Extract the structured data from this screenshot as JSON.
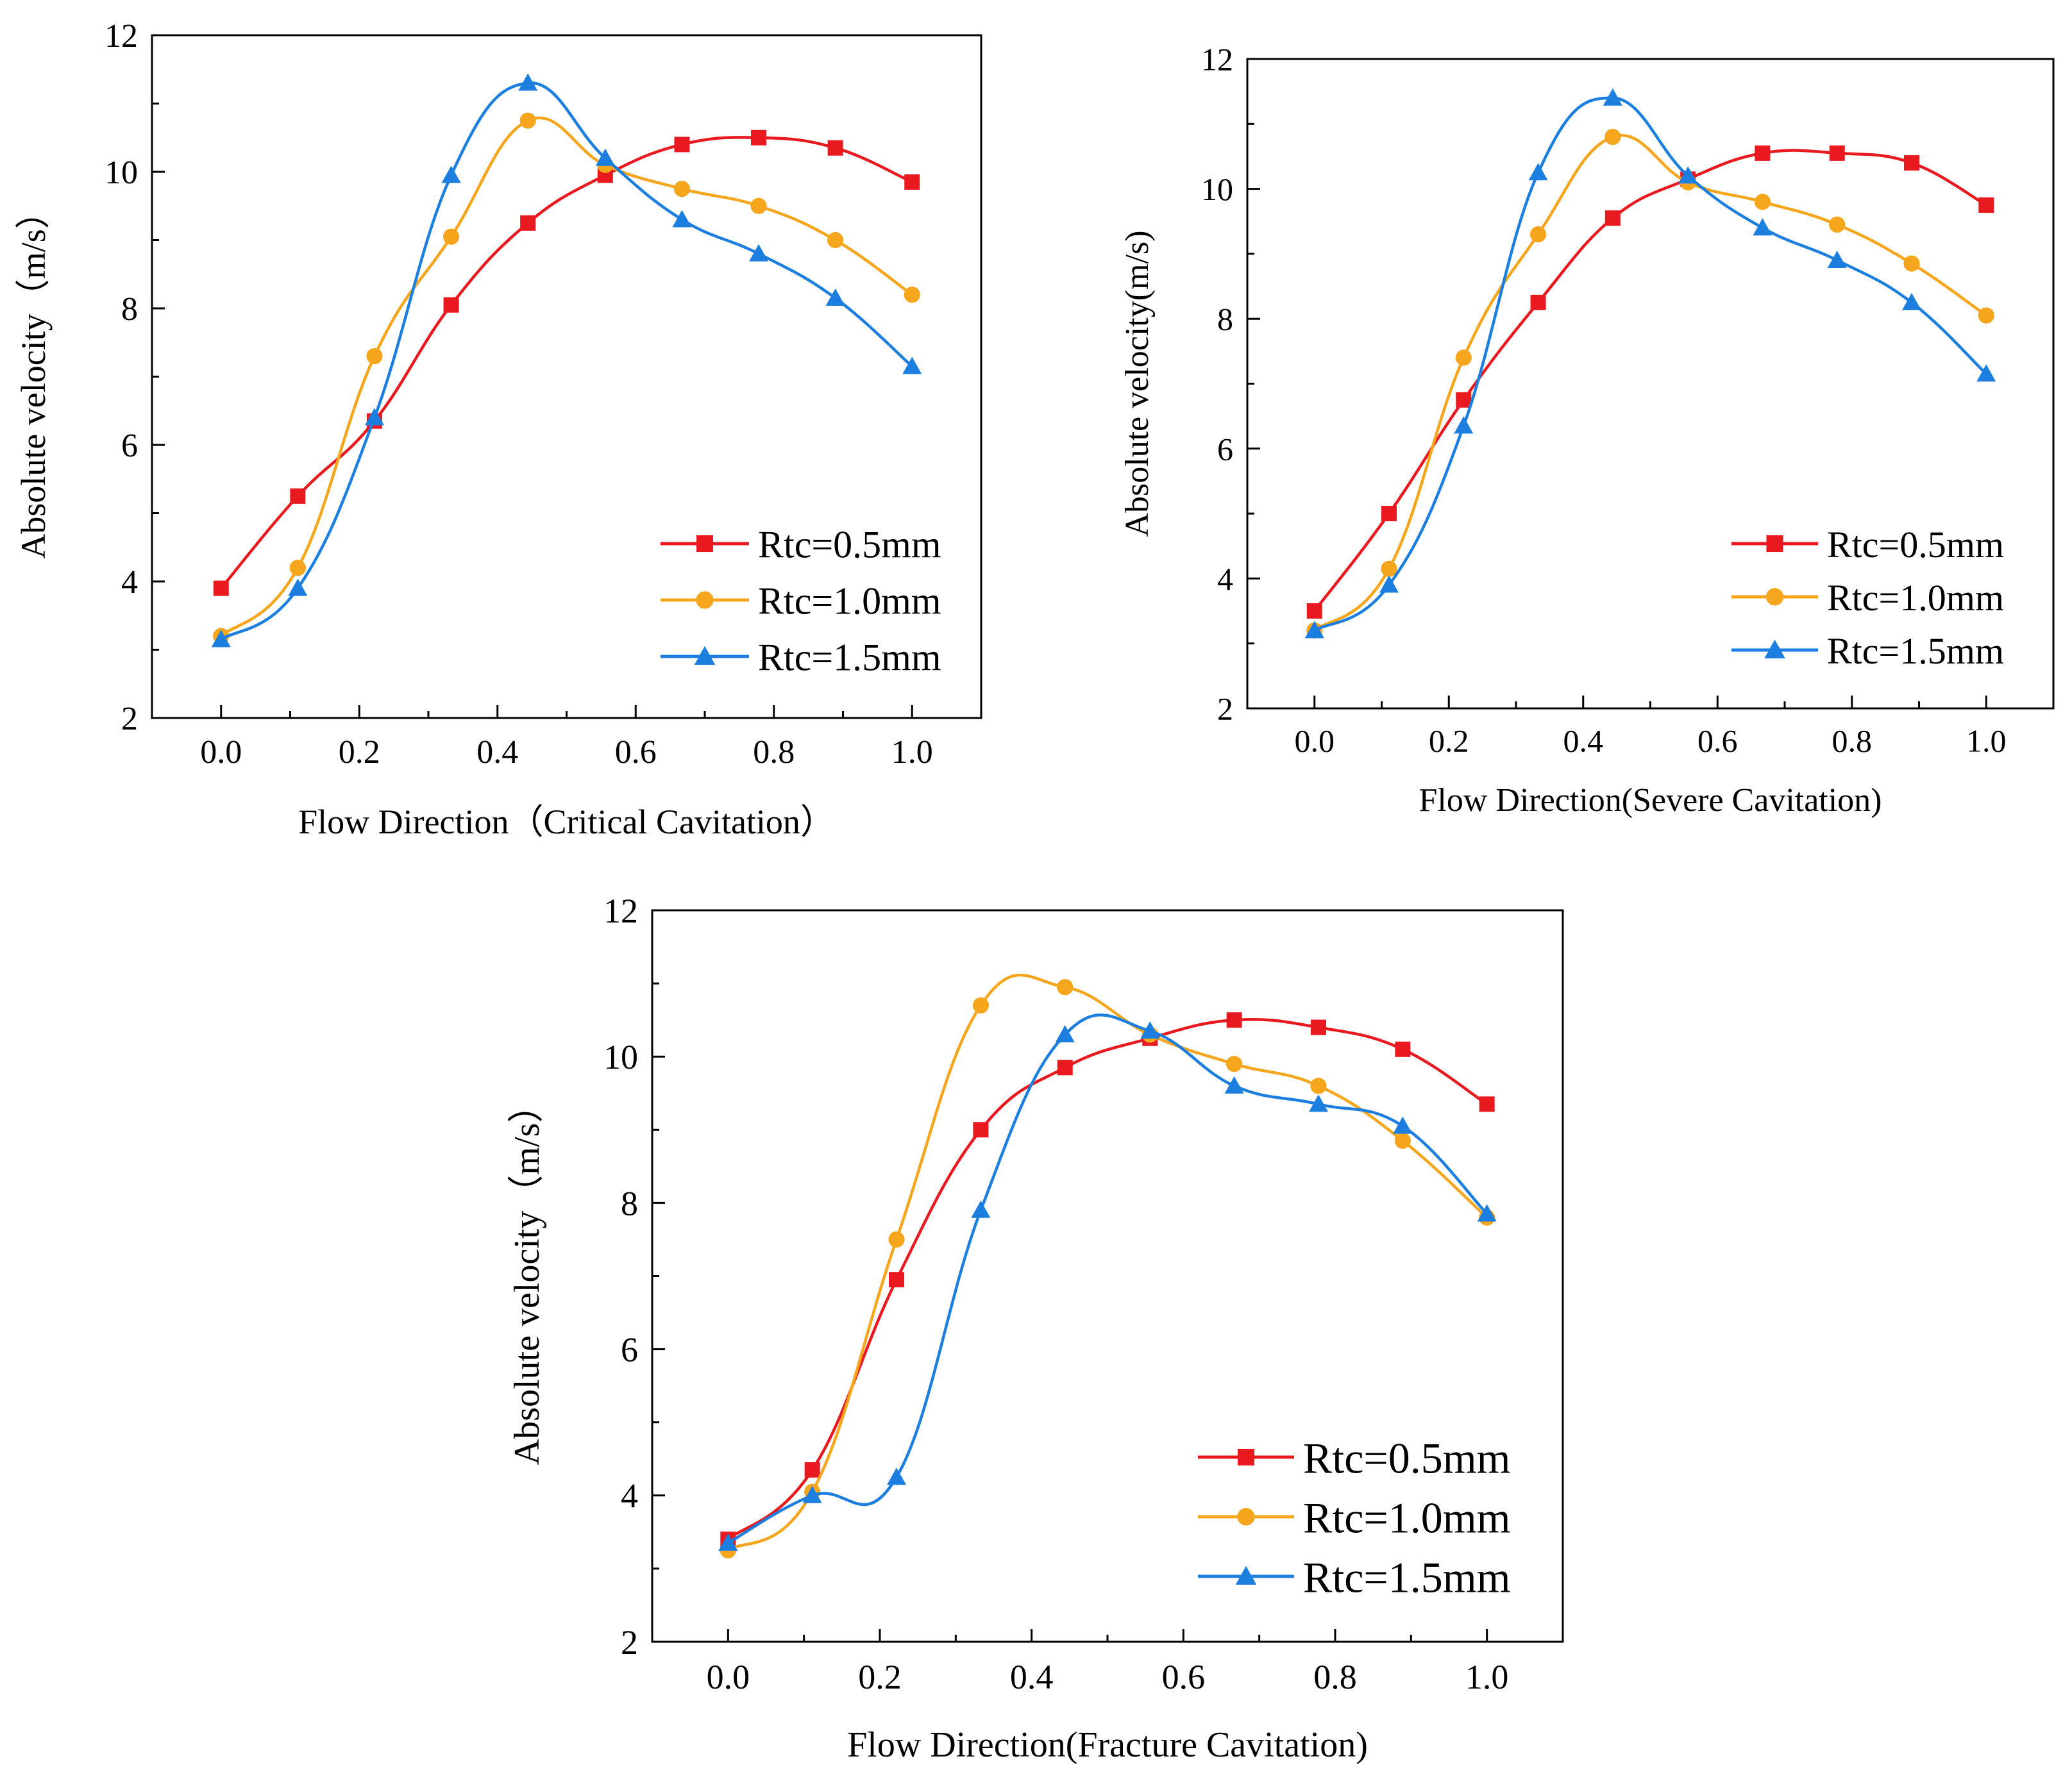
{
  "chart_data": [
    {
      "type": "line",
      "title": "",
      "xlabel": "Flow Direction（Critical Cavitation）",
      "ylabel": "Absolute velocity（m/s）",
      "xlim": [
        -0.1,
        1.1
      ],
      "ylim": [
        2,
        12
      ],
      "xticks": [
        "0.0",
        "0.2",
        "0.4",
        "0.6",
        "0.8",
        "1.0"
      ],
      "yticks": [
        "2",
        "4",
        "6",
        "8",
        "10",
        "12"
      ],
      "legend_position": "bottom-right",
      "x": [
        0,
        0.111,
        0.222,
        0.333,
        0.444,
        0.556,
        0.667,
        0.778,
        0.889,
        1.0
      ],
      "series": [
        {
          "name": "Rtc=0.5mm",
          "color": "#e8191f",
          "marker": "square",
          "values": [
            3.9,
            5.25,
            6.35,
            8.05,
            9.25,
            9.95,
            10.4,
            10.5,
            10.35,
            9.85
          ]
        },
        {
          "name": "Rtc=1.0mm",
          "color": "#f5a61c",
          "marker": "circle",
          "values": [
            3.2,
            4.2,
            7.3,
            9.05,
            10.75,
            10.1,
            9.75,
            9.5,
            9.0,
            8.2
          ]
        },
        {
          "name": "Rtc=1.5mm",
          "color": "#1c7fe0",
          "marker": "triangle",
          "values": [
            3.15,
            3.9,
            6.4,
            9.95,
            11.3,
            10.2,
            9.3,
            8.8,
            8.15,
            7.15
          ]
        }
      ]
    },
    {
      "type": "line",
      "title": "",
      "xlabel": "Flow Direction(Severe Cavitation)",
      "ylabel": "Absolute velocity(m/s)",
      "xlim": [
        -0.1,
        1.1
      ],
      "ylim": [
        2,
        12
      ],
      "xticks": [
        "0.0",
        "0.2",
        "0.4",
        "0.6",
        "0.8",
        "1.0"
      ],
      "yticks": [
        "2",
        "4",
        "6",
        "8",
        "10",
        "12"
      ],
      "legend_position": "bottom-right",
      "x": [
        0,
        0.111,
        0.222,
        0.333,
        0.444,
        0.556,
        0.667,
        0.778,
        0.889,
        1.0
      ],
      "series": [
        {
          "name": "Rtc=0.5mm",
          "color": "#e8191f",
          "marker": "square",
          "values": [
            3.5,
            5.0,
            6.75,
            8.25,
            9.55,
            10.15,
            10.55,
            10.55,
            10.4,
            9.75
          ]
        },
        {
          "name": "Rtc=1.0mm",
          "color": "#f5a61c",
          "marker": "circle",
          "values": [
            3.2,
            4.15,
            7.4,
            9.3,
            10.8,
            10.1,
            9.8,
            9.45,
            8.85,
            8.05
          ]
        },
        {
          "name": "Rtc=1.5mm",
          "color": "#1c7fe0",
          "marker": "triangle",
          "values": [
            3.2,
            3.9,
            6.35,
            10.25,
            11.4,
            10.2,
            9.4,
            8.9,
            8.25,
            7.15
          ]
        }
      ]
    },
    {
      "type": "line",
      "title": "",
      "xlabel": "Flow Direction(Fracture Cavitation)",
      "ylabel": "Absolute velocity（m/s）",
      "xlim": [
        -0.1,
        1.1
      ],
      "ylim": [
        2,
        12
      ],
      "xticks": [
        "0.0",
        "0.2",
        "0.4",
        "0.6",
        "0.8",
        "1.0"
      ],
      "yticks": [
        "2",
        "4",
        "6",
        "8",
        "10",
        "12"
      ],
      "legend_position": "bottom-right",
      "x": [
        0,
        0.111,
        0.222,
        0.333,
        0.444,
        0.556,
        0.667,
        0.778,
        0.889,
        1.0
      ],
      "series": [
        {
          "name": "Rtc=0.5mm",
          "color": "#e8191f",
          "marker": "square",
          "values": [
            3.4,
            4.35,
            6.95,
            9.0,
            9.85,
            10.25,
            10.5,
            10.4,
            10.1,
            9.35
          ]
        },
        {
          "name": "Rtc=1.0mm",
          "color": "#f5a61c",
          "marker": "circle",
          "values": [
            3.25,
            4.05,
            7.5,
            10.7,
            10.95,
            10.3,
            9.9,
            9.6,
            8.85,
            7.8
          ]
        },
        {
          "name": "Rtc=1.5mm",
          "color": "#1c7fe0",
          "marker": "triangle",
          "values": [
            3.35,
            4.0,
            4.25,
            7.9,
            10.3,
            10.35,
            9.6,
            9.35,
            9.05,
            7.85
          ]
        }
      ]
    }
  ]
}
